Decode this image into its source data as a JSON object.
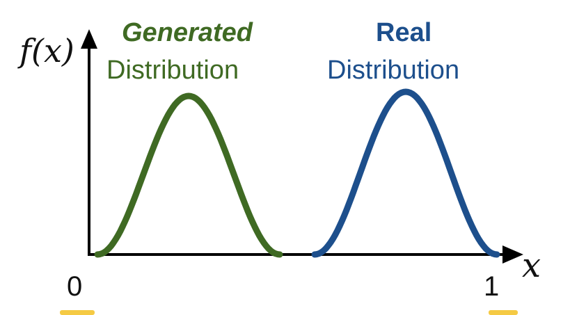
{
  "axes": {
    "y_label": "f(x)",
    "x_label": "x",
    "tick_start": "0",
    "tick_end": "1"
  },
  "generated": {
    "title": "Generated",
    "subtitle": "Distribution",
    "color": "#3f6a23"
  },
  "real": {
    "title": "Real",
    "subtitle": "Distribution",
    "color": "#1d4f8c"
  },
  "highlight_color": "#f4c430"
}
